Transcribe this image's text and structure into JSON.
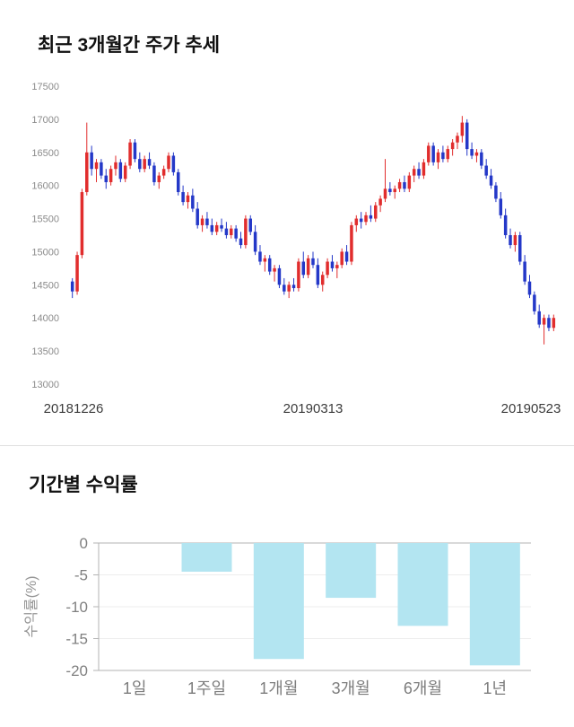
{
  "sections": {
    "price_trend": {
      "title": "최근 3개월간 주가 추세"
    },
    "returns": {
      "title": "기간별 수익률"
    }
  },
  "chart_data": [
    {
      "type": "candlestick",
      "title": "최근 3개월간 주가 추세",
      "x_tick_labels": [
        "20181226",
        "20190313",
        "20190523"
      ],
      "y_ticks": [
        17500,
        17000,
        16500,
        16000,
        15500,
        15000,
        14500,
        14000,
        13500,
        13000
      ],
      "ylim": [
        13000,
        17500
      ],
      "grid": false,
      "up_color": "#e12d2d",
      "down_color": "#2438c8",
      "candles": [
        [
          14550,
          14600,
          14300,
          14400
        ],
        [
          14400,
          15000,
          14350,
          14950
        ],
        [
          14950,
          15950,
          14900,
          15900
        ],
        [
          15900,
          16950,
          15850,
          16500
        ],
        [
          16500,
          16600,
          16150,
          16250
        ],
        [
          16250,
          16400,
          16050,
          16350
        ],
        [
          16350,
          16400,
          16100,
          16150
        ],
        [
          16150,
          16250,
          15950,
          16050
        ],
        [
          16050,
          16300,
          16000,
          16250
        ],
        [
          16250,
          16450,
          16150,
          16350
        ],
        [
          16350,
          16400,
          16050,
          16100
        ],
        [
          16100,
          16350,
          16050,
          16300
        ],
        [
          16300,
          16700,
          16250,
          16650
        ],
        [
          16650,
          16700,
          16350,
          16400
        ],
        [
          16400,
          16500,
          16200,
          16250
        ],
        [
          16250,
          16450,
          16200,
          16400
        ],
        [
          16400,
          16500,
          16250,
          16300
        ],
        [
          16300,
          16350,
          16000,
          16050
        ],
        [
          16050,
          16200,
          15950,
          16150
        ],
        [
          16150,
          16300,
          16100,
          16250
        ],
        [
          16250,
          16500,
          16200,
          16450
        ],
        [
          16450,
          16500,
          16150,
          16200
        ],
        [
          16200,
          16250,
          15850,
          15900
        ],
        [
          15900,
          16000,
          15700,
          15750
        ],
        [
          15750,
          15900,
          15650,
          15850
        ],
        [
          15850,
          15950,
          15600,
          15650
        ],
        [
          15650,
          15750,
          15350,
          15400
        ],
        [
          15400,
          15550,
          15300,
          15500
        ],
        [
          15500,
          15600,
          15350,
          15400
        ],
        [
          15400,
          15500,
          15250,
          15300
        ],
        [
          15300,
          15450,
          15250,
          15400
        ],
        [
          15400,
          15500,
          15300,
          15350
        ],
        [
          15350,
          15450,
          15200,
          15250
        ],
        [
          15250,
          15400,
          15200,
          15350
        ],
        [
          15350,
          15400,
          15150,
          15200
        ],
        [
          15200,
          15300,
          15050,
          15100
        ],
        [
          15100,
          15550,
          15050,
          15500
        ],
        [
          15500,
          15550,
          15250,
          15300
        ],
        [
          15300,
          15400,
          14950,
          15000
        ],
        [
          15000,
          15100,
          14800,
          14850
        ],
        [
          14850,
          14950,
          14700,
          14900
        ],
        [
          14900,
          14950,
          14650,
          14700
        ],
        [
          14700,
          14800,
          14550,
          14750
        ],
        [
          14750,
          14800,
          14450,
          14500
        ],
        [
          14500,
          14600,
          14350,
          14400
        ],
        [
          14400,
          14550,
          14300,
          14500
        ],
        [
          14500,
          14600,
          14400,
          14450
        ],
        [
          14450,
          14900,
          14400,
          14850
        ],
        [
          14850,
          15000,
          14600,
          14650
        ],
        [
          14650,
          14950,
          14600,
          14900
        ],
        [
          14900,
          15000,
          14750,
          14800
        ],
        [
          14800,
          14900,
          14450,
          14500
        ],
        [
          14500,
          14700,
          14400,
          14650
        ],
        [
          14650,
          14900,
          14600,
          14850
        ],
        [
          14850,
          14950,
          14700,
          14750
        ],
        [
          14750,
          14850,
          14600,
          14800
        ],
        [
          14800,
          15050,
          14750,
          15000
        ],
        [
          15000,
          15100,
          14800,
          14850
        ],
        [
          14850,
          15450,
          14800,
          15400
        ],
        [
          15400,
          15550,
          15300,
          15500
        ],
        [
          15500,
          15600,
          15350,
          15450
        ],
        [
          15450,
          15600,
          15400,
          15550
        ],
        [
          15550,
          15700,
          15450,
          15500
        ],
        [
          15500,
          15750,
          15450,
          15700
        ],
        [
          15700,
          15850,
          15600,
          15800
        ],
        [
          15800,
          16400,
          15750,
          15950
        ],
        [
          15950,
          16050,
          15850,
          15900
        ],
        [
          15900,
          16000,
          15800,
          15950
        ],
        [
          15950,
          16100,
          15900,
          16050
        ],
        [
          16050,
          16150,
          15900,
          15950
        ],
        [
          15950,
          16200,
          15900,
          16150
        ],
        [
          16150,
          16300,
          16050,
          16250
        ],
        [
          16250,
          16350,
          16100,
          16150
        ],
        [
          16150,
          16400,
          16100,
          16350
        ],
        [
          16350,
          16650,
          16300,
          16600
        ],
        [
          16600,
          16650,
          16300,
          16350
        ],
        [
          16350,
          16550,
          16250,
          16500
        ],
        [
          16500,
          16600,
          16350,
          16400
        ],
        [
          16400,
          16600,
          16350,
          16550
        ],
        [
          16550,
          16700,
          16450,
          16650
        ],
        [
          16650,
          16800,
          16550,
          16750
        ],
        [
          16750,
          17050,
          16650,
          16950
        ],
        [
          16950,
          17000,
          16450,
          16550
        ],
        [
          16550,
          16650,
          16400,
          16450
        ],
        [
          16450,
          16550,
          16350,
          16500
        ],
        [
          16500,
          16550,
          16250,
          16300
        ],
        [
          16300,
          16400,
          16100,
          16150
        ],
        [
          16150,
          16250,
          15950,
          16000
        ],
        [
          16000,
          16050,
          15750,
          15800
        ],
        [
          15800,
          15900,
          15500,
          15550
        ],
        [
          15550,
          15650,
          15200,
          15250
        ],
        [
          15250,
          15350,
          15050,
          15100
        ],
        [
          15100,
          15300,
          15000,
          15250
        ],
        [
          15250,
          15300,
          14800,
          14850
        ],
        [
          14850,
          14950,
          14500,
          14550
        ],
        [
          14550,
          14650,
          14300,
          14350
        ],
        [
          14350,
          14400,
          14050,
          14100
        ],
        [
          14100,
          14200,
          13850,
          13900
        ],
        [
          13900,
          14050,
          13600,
          14000
        ],
        [
          14000,
          14050,
          13800,
          13850
        ],
        [
          13850,
          14050,
          13800,
          14000
        ]
      ]
    },
    {
      "type": "bar",
      "title": "기간별 수익률",
      "categories": [
        "1일",
        "1주일",
        "1개월",
        "3개월",
        "6개월",
        "1년"
      ],
      "values": [
        0,
        -4.5,
        -18.2,
        -8.6,
        -13.0,
        -19.2
      ],
      "xlabel": "",
      "ylabel": "수익률(%)",
      "y_ticks": [
        0,
        -5,
        -10,
        -15,
        -20
      ],
      "ylim": [
        -20,
        0
      ],
      "grid": true,
      "legend": false,
      "bar_color": "#b3e5f1",
      "axis_color": "#b3b3b3"
    }
  ]
}
